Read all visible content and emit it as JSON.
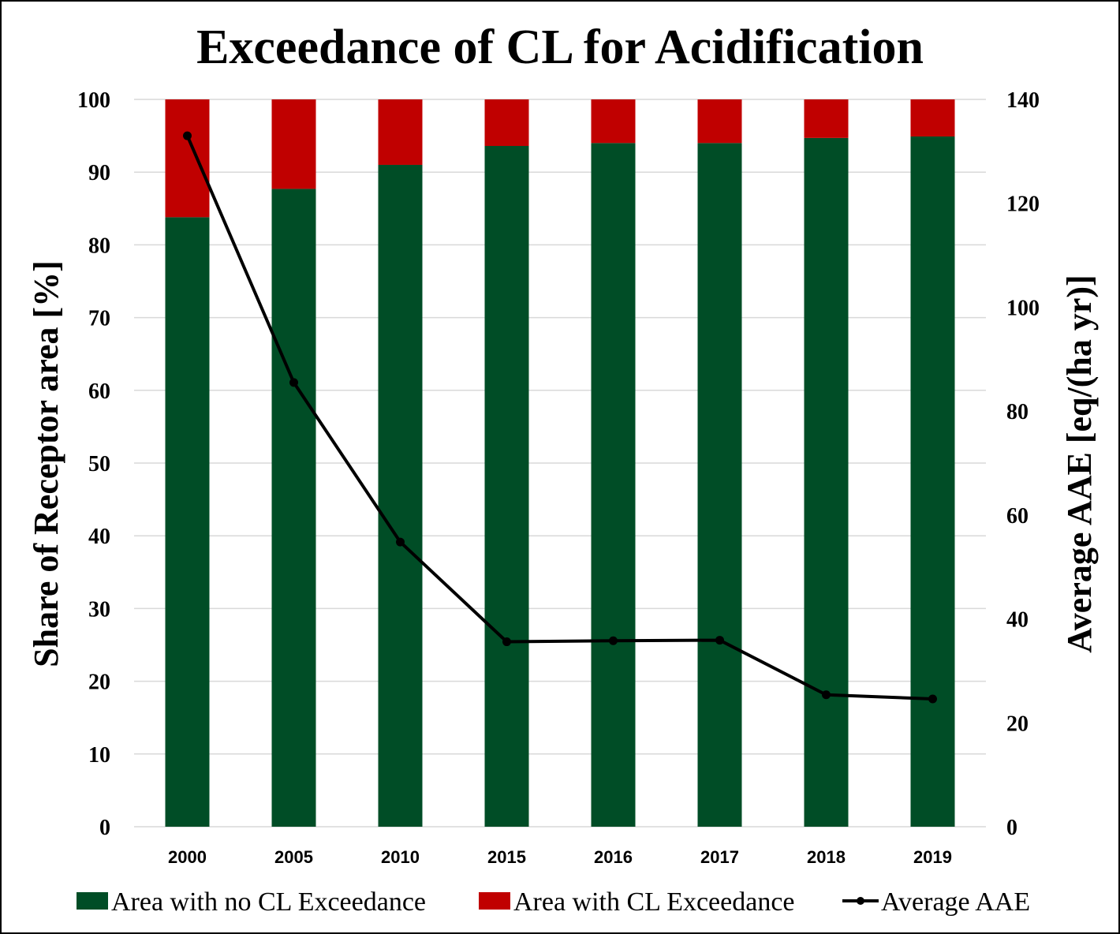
{
  "chart_data": {
    "type": "bar",
    "title": "Exceedance of CL for Acidification",
    "categories": [
      "2000",
      "2005",
      "2010",
      "2015",
      "2016",
      "2017",
      "2018",
      "2019"
    ],
    "series": [
      {
        "name": "Area with no CL Exceedance",
        "type": "stacked-bar",
        "axis": "left",
        "color": "#004d26",
        "values": [
          83.8,
          87.7,
          91.0,
          93.6,
          94.0,
          94.0,
          94.7,
          94.9
        ]
      },
      {
        "name": "Area with CL Exceedance",
        "type": "stacked-bar",
        "axis": "left",
        "color": "#c00000",
        "values": [
          16.2,
          12.3,
          9.0,
          6.4,
          6.0,
          6.0,
          5.3,
          5.1
        ]
      },
      {
        "name": "Average AAE",
        "type": "line",
        "axis": "right",
        "color": "#000000",
        "values": [
          133,
          85.5,
          54.8,
          35.6,
          35.8,
          35.9,
          25.4,
          24.6
        ]
      }
    ],
    "ylabel": "Share of Receptor area [%]",
    "y2label": "Average AAE [eq/(ha yr)]",
    "ylim": [
      0,
      100
    ],
    "y2lim": [
      0,
      140
    ],
    "yticks": [
      "0",
      "10",
      "20",
      "30",
      "40",
      "50",
      "60",
      "70",
      "80",
      "90",
      "100"
    ],
    "y2ticks": [
      "0",
      "20",
      "40",
      "60",
      "80",
      "100",
      "120",
      "140"
    ],
    "grid": true,
    "legend_position": "bottom"
  }
}
